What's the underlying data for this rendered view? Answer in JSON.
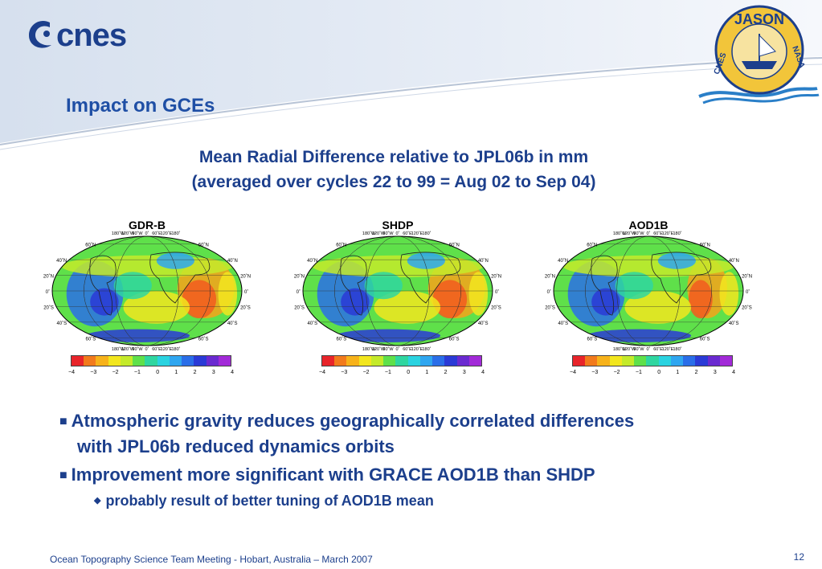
{
  "logo": {
    "text": "cnes"
  },
  "jason_logo": {
    "text": "JASON",
    "left_text": "CNES",
    "right_text": "NASA"
  },
  "slide": {
    "title": "Impact on GCEs",
    "subtitle_line1": "Mean Radial Difference relative to JPL06b in mm",
    "subtitle_line2": "(averaged over cycles 22 to 99 = Aug 02 to Sep 04)"
  },
  "maps": [
    {
      "label": "GDR-B"
    },
    {
      "label": "SHDP"
    },
    {
      "label": "AOD1B"
    }
  ],
  "map_labels": {
    "lat_left": [
      "60˚N",
      "40˚N",
      "20˚N",
      "0˚",
      "20˚S",
      "40˚S",
      "60˚S"
    ],
    "lat_right": [
      "60˚N",
      "40˚N",
      "20˚N",
      "0˚",
      "20˚S",
      "40˚S",
      "60˚S"
    ],
    "lon_top": [
      "180˚W",
      "120˚W",
      "60˚W",
      "0˚",
      "60˚E",
      "120˚E",
      "180˚"
    ],
    "lon_bottom": [
      "180˚W",
      "120˚W",
      "60˚W",
      "0˚",
      "60˚E",
      "120˚E",
      "180˚"
    ]
  },
  "colorbar": {
    "ticks": [
      "−4",
      "−3",
      "−2",
      "−1",
      "0",
      "1",
      "2",
      "3",
      "4"
    ],
    "colors": [
      "#e8242a",
      "#f27a1c",
      "#f7b21a",
      "#f2e61e",
      "#c4ea2a",
      "#5fe04a",
      "#2fd6a0",
      "#2ad3e0",
      "#2fa6f0",
      "#2a6ee8",
      "#2a3ad6",
      "#6a2ad0",
      "#a22ad8"
    ]
  },
  "bullets": {
    "b1_line1": "Atmospheric gravity reduces geographically correlated differences",
    "b1_line2": "with JPL06b reduced dynamics orbits",
    "b2": "Improvement more significant with GRACE AOD1B than SHDP",
    "b3": "probably result of better tuning of AOD1B mean"
  },
  "footer": {
    "text": "Ocean Topography Science Team Meeting - Hobart, Australia – March 2007",
    "page": "12"
  }
}
